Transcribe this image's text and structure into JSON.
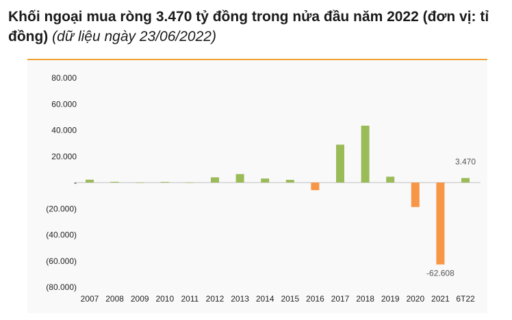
{
  "header": {
    "title": "Khối ngoại mua ròng 3.470 tỷ đồng trong nửa đầu năm 2022 (đơn vị: tỉ đồng)",
    "subtitle": "(dữ liệu ngày 23/06/2022)"
  },
  "colors": {
    "positive": "#9bbb59",
    "negative": "#f79646",
    "rule": "#f0a030"
  },
  "chart_data": {
    "type": "bar",
    "categories": [
      "2007",
      "2008",
      "2009",
      "2010",
      "2011",
      "2012",
      "2013",
      "2014",
      "2015",
      "2016",
      "2017",
      "2018",
      "2019",
      "2020",
      "2021",
      "6T22"
    ],
    "values": [
      2200,
      600,
      0,
      500,
      0,
      4000,
      6500,
      3100,
      2100,
      -5800,
      29000,
      43500,
      4500,
      -18700,
      -62608,
      3470
    ],
    "ylim": [
      -80000,
      80000
    ],
    "yticks": [
      80000,
      60000,
      40000,
      20000,
      0,
      -20000,
      -40000,
      -60000,
      -80000
    ],
    "ytick_labels": [
      "80.000",
      "60.000",
      "40.000",
      "20.000",
      "-",
      "(20.000)",
      "(40.000)",
      "(60.000)",
      "(80.000)"
    ],
    "data_labels": [
      {
        "category": "2021",
        "text": "-62.608"
      },
      {
        "category": "6T22",
        "text": "3.470"
      }
    ],
    "grid": false,
    "legend": "none"
  }
}
